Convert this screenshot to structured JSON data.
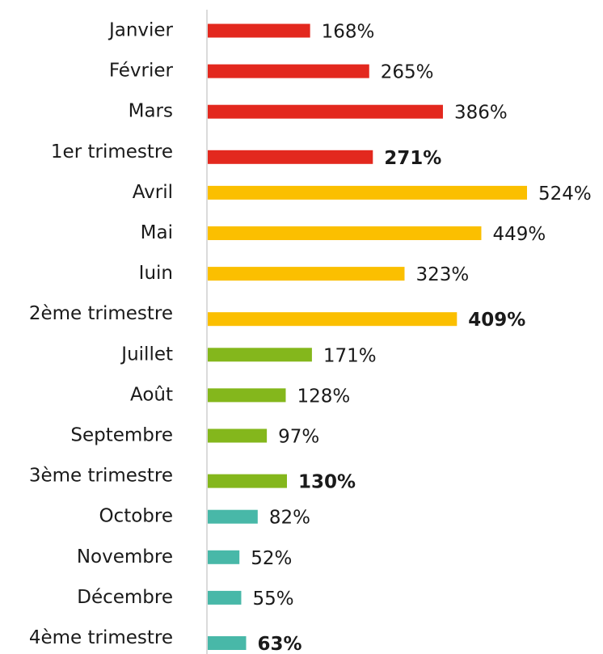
{
  "chart_data": {
    "type": "bar",
    "orientation": "horizontal",
    "categories": [
      "Janvier",
      "Février",
      "Mars",
      "1er trimestre",
      "Avril",
      "Mai",
      "Iuin",
      "2ème trimestre",
      "Juillet",
      "Août",
      "Septembre",
      "3ème trimestre",
      "Octobre",
      "Novembre",
      "Décembre",
      "4ème trimestre"
    ],
    "values": [
      168,
      265,
      386,
      271,
      524,
      449,
      323,
      409,
      171,
      128,
      97,
      130,
      82,
      52,
      55,
      63
    ],
    "value_labels": [
      "168%",
      "265%",
      "386%",
      "271%",
      "524%",
      "449%",
      "323%",
      "409%",
      "171%",
      "128%",
      "97%",
      "130%",
      "82%",
      "52%",
      "55%",
      "63%"
    ],
    "colors": [
      "#e3281e",
      "#e3281e",
      "#e3281e",
      "#e3281e",
      "#fbbf00",
      "#fbbf00",
      "#fbbf00",
      "#fbbf00",
      "#84b71c",
      "#84b71c",
      "#84b71c",
      "#84b71c",
      "#48b8a8",
      "#48b8a8",
      "#48b8a8",
      "#48b8a8"
    ],
    "bold": [
      false,
      false,
      false,
      true,
      false,
      false,
      false,
      true,
      false,
      false,
      false,
      true,
      false,
      false,
      false,
      true
    ]
  }
}
